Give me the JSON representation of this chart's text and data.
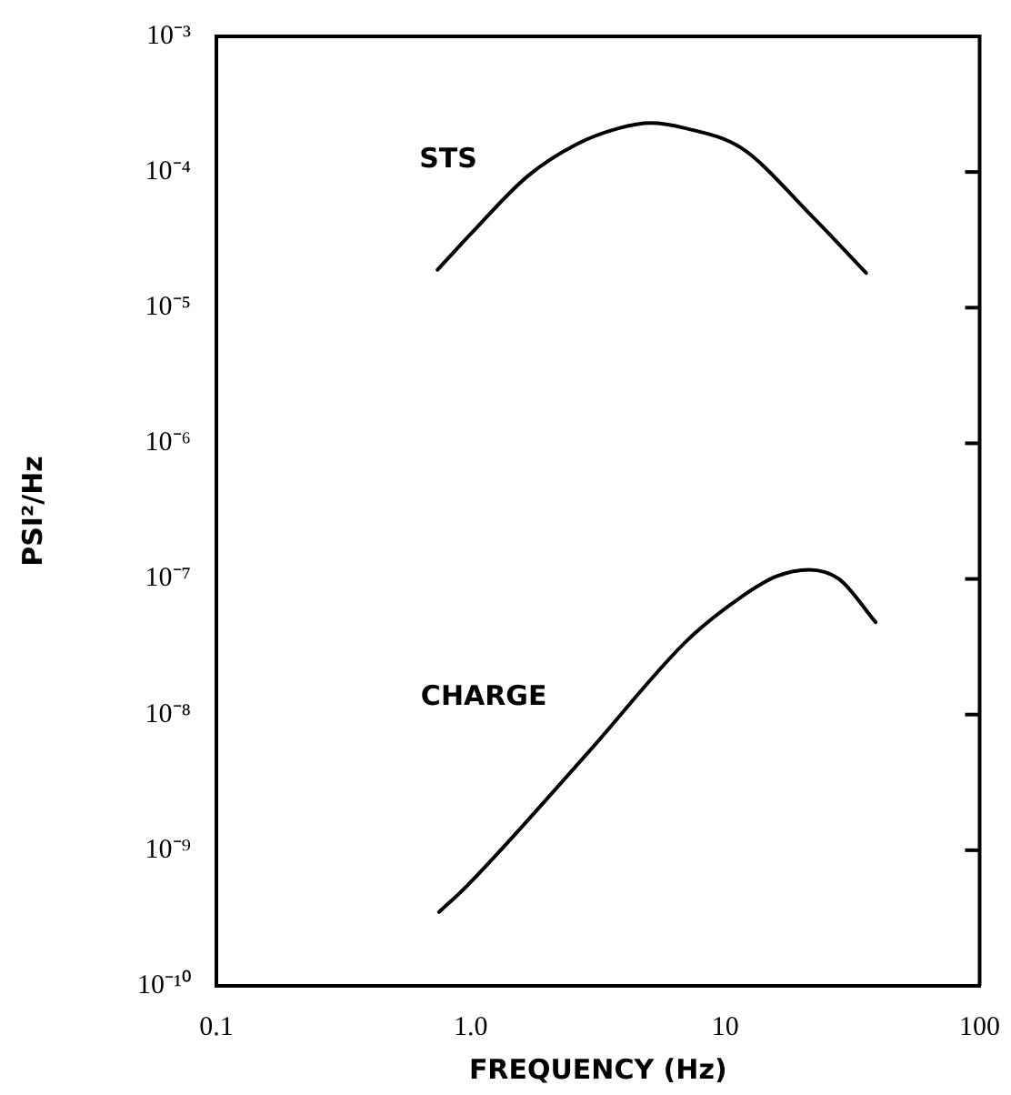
{
  "chart_data": {
    "type": "line",
    "xlabel": "FREQUENCY (Hz)",
    "ylabel": "PSI²/Hz",
    "log": "xy",
    "grid": false,
    "legend": false,
    "marker": "none",
    "line_style": "solid",
    "xlim": [
      0.1,
      100
    ],
    "xticks": [
      {
        "value": 0.1,
        "label": "0.1"
      },
      {
        "value": 1,
        "label": "1.0"
      },
      10,
      100
    ],
    "ylim": [
      1e-10,
      0.001
    ],
    "yticks": [
      {
        "value": 1e-10,
        "label": "10⁻¹⁰"
      },
      {
        "value": 1e-09,
        "label": "10⁻⁹"
      },
      {
        "value": 1e-08,
        "label": "10⁻⁸"
      },
      {
        "value": 1e-07,
        "label": "10⁻⁷"
      },
      {
        "value": 1e-06,
        "label": "10⁻⁶"
      },
      {
        "value": 1e-05,
        "label": "10⁻⁵"
      },
      {
        "value": 0.0001,
        "label": "10⁻⁴"
      },
      {
        "value": 0.001,
        "label": "10⁻³"
      }
    ],
    "series": [
      {
        "name": "STS",
        "color": "#000000",
        "x": [
          0.74,
          1.0,
          1.67,
          2.6,
          3.8,
          5.1,
          7.0,
          11.6,
          21.3,
          35.8
        ],
        "values": [
          1.9e-05,
          3.5e-05,
          9.3e-05,
          0.00016,
          0.00021,
          0.00023,
          0.00021,
          0.00015,
          5e-05,
          1.8e-05
        ]
      },
      {
        "name": "CHARGE",
        "color": "#000000",
        "x": [
          0.75,
          0.97,
          2.93,
          7.06,
          11.6,
          16,
          21.3,
          28,
          39
        ],
        "values": [
          3.5e-10,
          5.5e-10,
          5.4e-09,
          3.5e-08,
          7.4e-08,
          1.05e-07,
          1.17e-07,
          1e-07,
          4.8e-08
        ]
      }
    ]
  }
}
